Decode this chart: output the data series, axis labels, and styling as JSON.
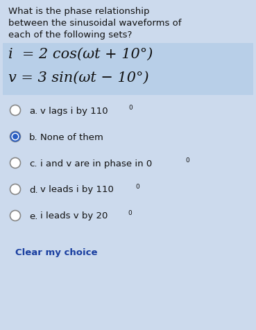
{
  "bg_color": "#ccdaed",
  "text_color": "#111111",
  "question_lines": [
    "What is the phase relationship",
    "between the sinusoidal waveforms of",
    "each of the following sets?"
  ],
  "equation1": "i  = 2 cos(ωt + 10°)",
  "equation2": "v = 3 sin(ωt − 10°)",
  "options": [
    {
      "label": "a.",
      "text": "v lags i by 110",
      "sup": "0",
      "selected": false
    },
    {
      "label": "b.",
      "text": "None of them",
      "sup": "",
      "selected": true
    },
    {
      "label": "c.",
      "text": "i and v are in phase in 0",
      "sup": "0",
      "selected": false
    },
    {
      "label": "d.",
      "text": "v leads i by 110",
      "sup": "0",
      "selected": false
    },
    {
      "label": "e.",
      "text": "i leads v by 20",
      "sup": "0",
      "selected": false
    }
  ],
  "clear_text": "Clear my choice",
  "radio_unselected_edge": "#888888",
  "radio_selected_fill": "#2a5fc4",
  "eq_bg_color": "#b8cfe8",
  "fig_width": 3.69,
  "fig_height": 4.77,
  "dpi": 100
}
